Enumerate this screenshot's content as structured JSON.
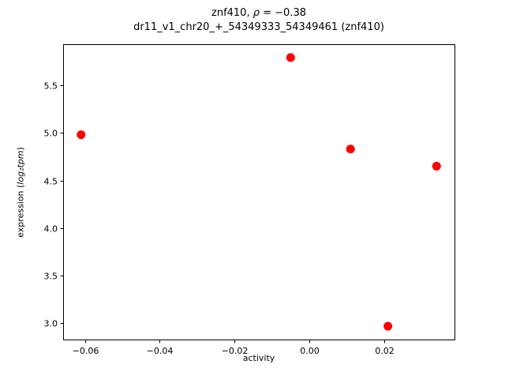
{
  "chart_data": {
    "type": "scatter",
    "title_line1": {
      "prefix": "znf410, ",
      "rho": "ρ",
      "suffix": " = −0.38"
    },
    "title_line2": "dr11_v1_chr20_+_54349333_54349461 (znf410)",
    "xlabel": "activity",
    "ylabel": {
      "prefix": "expression (",
      "math": "log₂tpm",
      "suffix": ")"
    },
    "marker_color": "#ff0000",
    "grid": false,
    "legend": "none",
    "xlim": [
      -0.0658,
      0.0388
    ],
    "ylim": [
      2.83,
      5.93
    ],
    "xticks": [
      {
        "value": -0.06,
        "label": "−0.06"
      },
      {
        "value": -0.04,
        "label": "−0.04"
      },
      {
        "value": -0.02,
        "label": "−0.02"
      },
      {
        "value": 0.0,
        "label": "0.00"
      },
      {
        "value": 0.02,
        "label": "0.02"
      }
    ],
    "yticks": [
      {
        "value": 3.0,
        "label": "3.0"
      },
      {
        "value": 3.5,
        "label": "3.5"
      },
      {
        "value": 4.0,
        "label": "4.0"
      },
      {
        "value": 4.5,
        "label": "4.5"
      },
      {
        "value": 5.0,
        "label": "5.0"
      },
      {
        "value": 5.5,
        "label": "5.5"
      }
    ],
    "points": [
      {
        "x": -0.061,
        "y": 4.98
      },
      {
        "x": -0.005,
        "y": 5.79
      },
      {
        "x": 0.011,
        "y": 4.83
      },
      {
        "x": 0.021,
        "y": 2.97
      },
      {
        "x": 0.034,
        "y": 4.65
      }
    ]
  }
}
